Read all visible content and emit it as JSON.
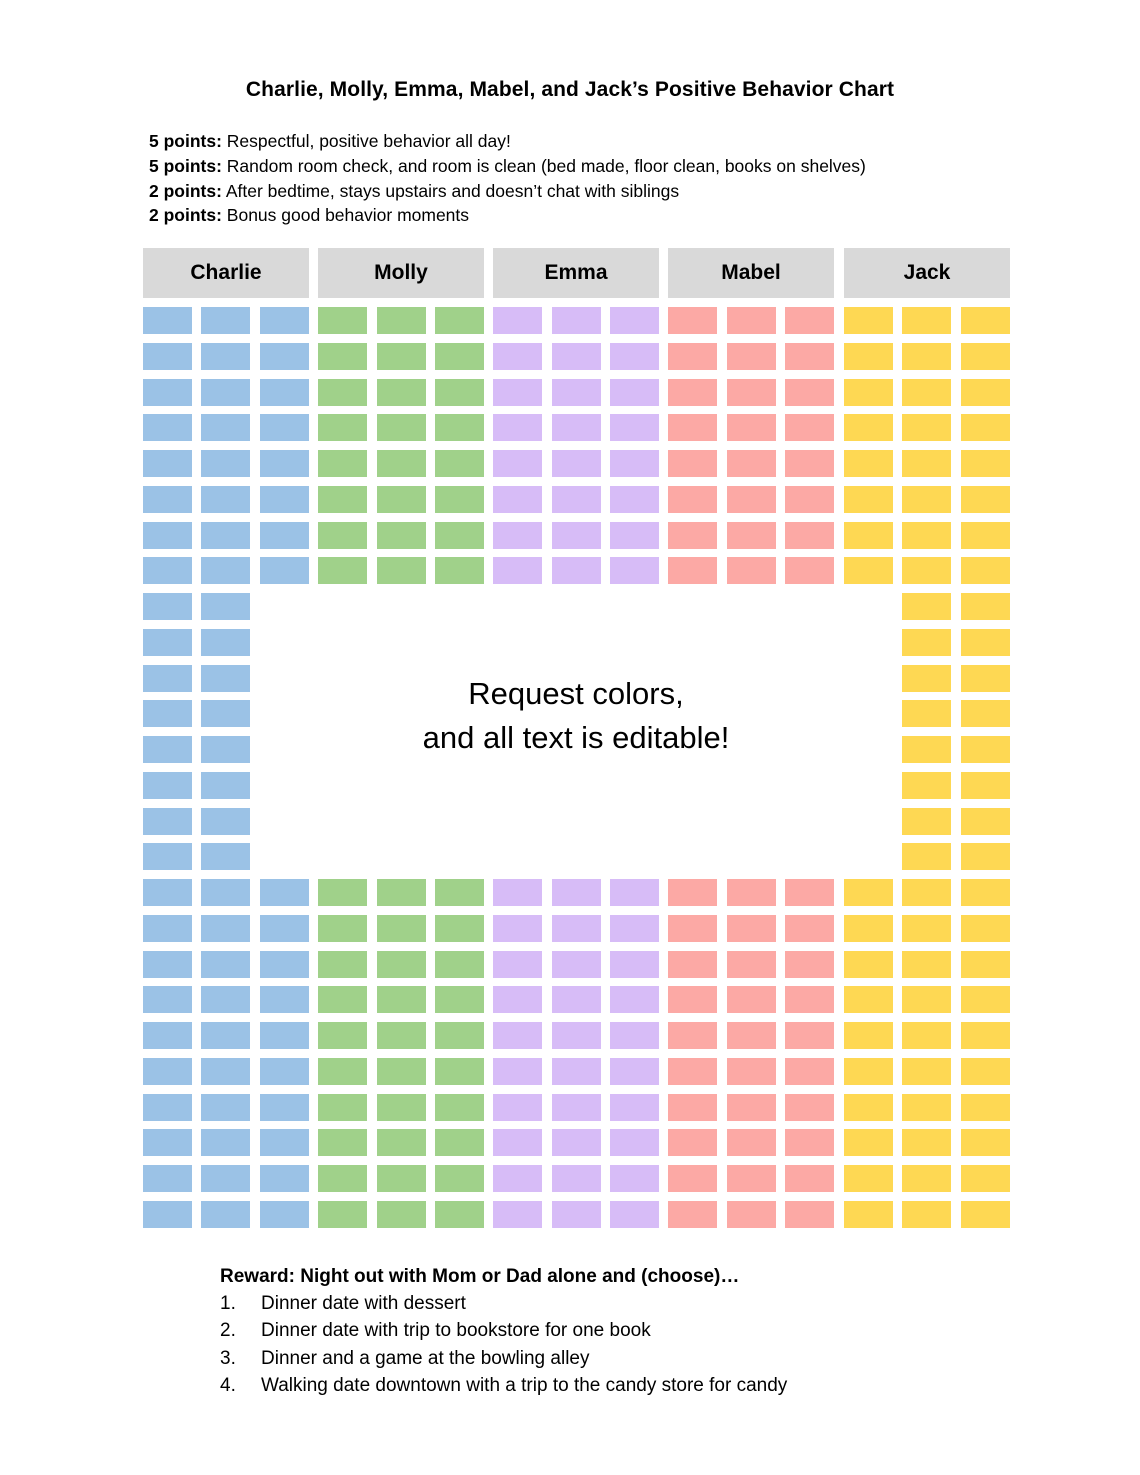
{
  "title": "Charlie, Molly, Emma, Mabel, and Jack’s Positive Behavior Chart",
  "rules": [
    {
      "points": "5 points:",
      "text": "Respectful, positive behavior all day!"
    },
    {
      "points": "5 points:",
      "text": "Random room check, and room is clean (bed made, floor clean, books on shelves)"
    },
    {
      "points": "2 points:",
      "text": "After bedtime, stays upstairs and doesn’t chat with siblings"
    },
    {
      "points": "2 points:",
      "text": "Bonus good behavior moments"
    }
  ],
  "children": [
    {
      "name": "Charlie",
      "color": "#9bc2e6"
    },
    {
      "name": "Molly",
      "color": "#a0d18a"
    },
    {
      "name": "Emma",
      "color": "#d7bcf7"
    },
    {
      "name": "Mabel",
      "color": "#fca9a5"
    },
    {
      "name": "Jack",
      "color": "#fed853"
    }
  ],
  "header_bg": "#d9d9d9",
  "center_note": {
    "line1": "Request colors,",
    "line2": "and all text is editable!"
  },
  "reward": {
    "title": "Reward: Night out with Mom or Dad alone and (choose)…",
    "items": [
      {
        "num": "1.",
        "text": "Dinner date with dessert"
      },
      {
        "num": "2.",
        "text": "Dinner date with trip to bookstore for one book"
      },
      {
        "num": "3.",
        "text": "Dinner and a game at the bowling alley"
      },
      {
        "num": "4.",
        "text": "Walking date downtown with a trip to the candy store for candy"
      }
    ]
  }
}
